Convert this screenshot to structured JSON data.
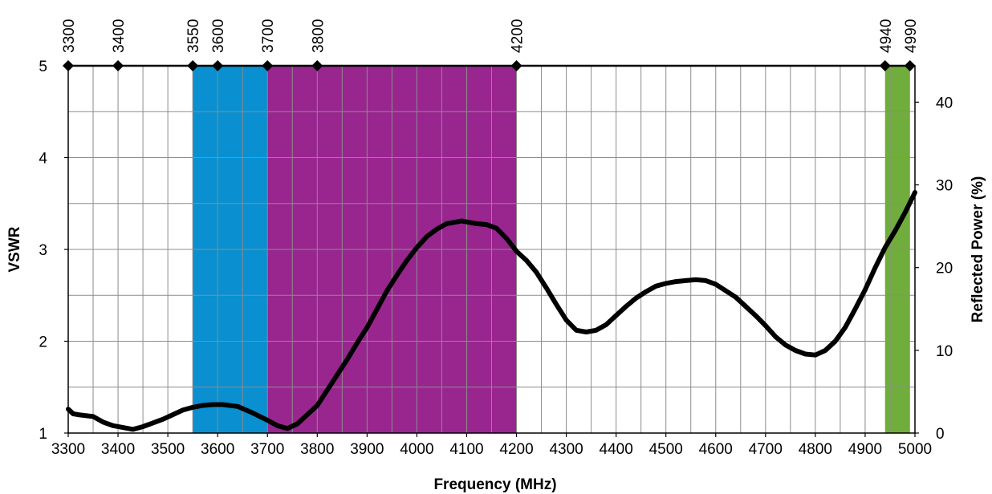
{
  "chart_data": {
    "type": "line",
    "xlabel": "Frequency (MHz)",
    "ylabel": "VSWR",
    "y2label": "Reflected Power (%)",
    "xlim": [
      3300,
      5000
    ],
    "ylim": [
      1,
      5
    ],
    "y2lim": [
      0,
      44.4
    ],
    "x_ticks": [
      3300,
      3400,
      3500,
      3600,
      3700,
      3800,
      3900,
      4000,
      4100,
      4200,
      4300,
      4400,
      4500,
      4600,
      4700,
      4800,
      4900,
      5000
    ],
    "y_ticks": [
      1,
      2,
      3,
      4,
      5
    ],
    "y2_ticks": [
      0,
      10,
      20,
      30,
      40
    ],
    "top_markers": [
      3300,
      3400,
      3550,
      3600,
      3700,
      3800,
      4200,
      4940,
      4990
    ],
    "bands": [
      {
        "from": 3550,
        "to": 3700,
        "color": "#0a90d0"
      },
      {
        "from": 3700,
        "to": 4200,
        "color": "#98268e"
      },
      {
        "from": 4940,
        "to": 4990,
        "color": "#70ad3c"
      }
    ],
    "grid": true,
    "line_color": "#000000",
    "series": [
      {
        "x": [
          3300,
          3310,
          3320,
          3350,
          3370,
          3390,
          3410,
          3430,
          3450,
          3470,
          3490,
          3510,
          3530,
          3550,
          3570,
          3590,
          3610,
          3640,
          3670,
          3700,
          3720,
          3740,
          3760,
          3780,
          3800,
          3830,
          3860,
          3880,
          3900,
          3920,
          3940,
          3960,
          3980,
          4000,
          4020,
          4040,
          4060,
          4080,
          4090,
          4100,
          4120,
          4140,
          4160,
          4180,
          4200,
          4220,
          4240,
          4260,
          4280,
          4300,
          4320,
          4340,
          4360,
          4380,
          4400,
          4420,
          4440,
          4460,
          4480,
          4500,
          4520,
          4540,
          4560,
          4580,
          4600,
          4620,
          4640,
          4660,
          4680,
          4700,
          4720,
          4740,
          4760,
          4780,
          4800,
          4820,
          4840,
          4860,
          4880,
          4900,
          4920,
          4940,
          4960,
          4980,
          5000
        ],
        "y": [
          1.26,
          1.21,
          1.2,
          1.18,
          1.12,
          1.08,
          1.06,
          1.04,
          1.07,
          1.11,
          1.15,
          1.2,
          1.25,
          1.28,
          1.3,
          1.31,
          1.31,
          1.29,
          1.22,
          1.14,
          1.08,
          1.05,
          1.1,
          1.2,
          1.3,
          1.55,
          1.8,
          1.98,
          2.15,
          2.35,
          2.55,
          2.72,
          2.88,
          3.02,
          3.14,
          3.22,
          3.28,
          3.3,
          3.31,
          3.3,
          3.28,
          3.27,
          3.23,
          3.12,
          2.98,
          2.88,
          2.75,
          2.58,
          2.4,
          2.23,
          2.12,
          2.1,
          2.12,
          2.18,
          2.28,
          2.38,
          2.47,
          2.54,
          2.6,
          2.63,
          2.65,
          2.66,
          2.67,
          2.66,
          2.62,
          2.55,
          2.48,
          2.38,
          2.28,
          2.17,
          2.05,
          1.96,
          1.9,
          1.86,
          1.85,
          1.9,
          2.0,
          2.15,
          2.35,
          2.56,
          2.8,
          3.02,
          3.2,
          3.4,
          3.62
        ]
      }
    ]
  }
}
